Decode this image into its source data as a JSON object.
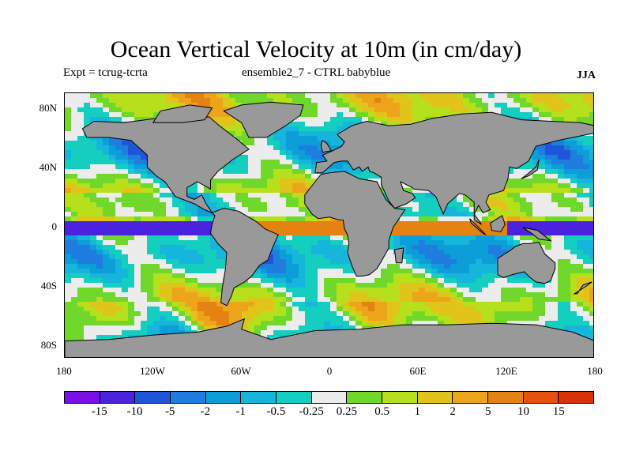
{
  "title": "Ocean Vertical Velocity at 10m (in cm/day)",
  "subtitle_left": "Expt = tcrug-tcrta",
  "subtitle_center": "ensemble2_7 - CTRL babyblue",
  "season": "JJA",
  "lat_labels": [
    "80N",
    "40N",
    "0",
    "40S",
    "80S"
  ],
  "lon_labels": [
    "180",
    "120W",
    "60W",
    "0",
    "60E",
    "120E",
    "180"
  ],
  "colorbar": {
    "colors": [
      "#7a10e8",
      "#4b22dd",
      "#1f55d9",
      "#1f7de0",
      "#0c9ed8",
      "#16b6dc",
      "#14cfc0",
      "#ececec",
      "#6fd82a",
      "#b6e01c",
      "#e0c41a",
      "#eca41a",
      "#e48212",
      "#e4520e",
      "#d83208"
    ],
    "labels": [
      "-15",
      "-10",
      "-5",
      "-2",
      "-1",
      "-0.5",
      "-0.25",
      "0.25",
      "0.5",
      "1",
      "2",
      "5",
      "10",
      "15"
    ]
  },
  "map": {
    "land_color": "#999999",
    "ocean_base_color": "#0c9ed8"
  }
}
